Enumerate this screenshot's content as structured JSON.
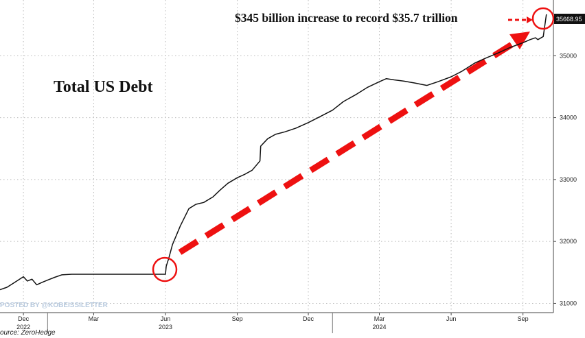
{
  "chart_data": {
    "type": "line",
    "title": "Total US Debt",
    "annotation": "$345 billion increase to record $35.7 trillion",
    "last_value_label": "35668.95",
    "watermark": "POSTED BY @KOBEISSILETTER",
    "source": "ource: ZeroHedge",
    "ylim": [
      30850,
      35900
    ],
    "y_ticks": [
      31000,
      32000,
      33000,
      34000,
      35000
    ],
    "y_tick_labels": [
      "31000",
      "32000",
      "33000",
      "34000",
      "35000"
    ],
    "x_range": [
      "2022-11-01",
      "2024-10-10"
    ],
    "x_ticks": [
      {
        "date": "2022-12-01",
        "label": "Dec",
        "year": "2022"
      },
      {
        "date": "2023-03-01",
        "label": "Mar"
      },
      {
        "date": "2023-06-01",
        "label": "Jun",
        "year": "2023"
      },
      {
        "date": "2023-09-01",
        "label": "Sep"
      },
      {
        "date": "2023-12-01",
        "label": "Dec"
      },
      {
        "date": "2024-03-01",
        "label": "Mar",
        "year": "2024"
      },
      {
        "date": "2024-06-01",
        "label": "Jun"
      },
      {
        "date": "2024-09-01",
        "label": "Sep"
      }
    ],
    "series": [
      {
        "x": [
          "2022-11-01",
          "2022-11-10",
          "2022-11-20",
          "2022-12-01",
          "2022-12-06",
          "2022-12-12",
          "2022-12-18",
          "2022-12-25",
          "2023-01-02",
          "2023-01-10",
          "2023-01-19",
          "2023-02-01",
          "2023-03-01",
          "2023-04-01",
          "2023-05-01",
          "2023-06-01",
          "2023-06-02",
          "2023-06-05",
          "2023-06-10",
          "2023-06-20",
          "2023-07-01",
          "2023-07-10",
          "2023-07-20",
          "2023-08-01",
          "2023-08-10",
          "2023-08-20",
          "2023-09-01",
          "2023-09-10",
          "2023-09-20",
          "2023-09-30",
          "2023-10-01",
          "2023-10-10",
          "2023-10-20",
          "2023-11-01",
          "2023-11-15",
          "2023-12-01",
          "2023-12-15",
          "2024-01-01",
          "2024-01-15",
          "2024-02-01",
          "2024-02-15",
          "2024-03-01",
          "2024-03-10",
          "2024-03-20",
          "2024-04-01",
          "2024-04-15",
          "2024-05-01",
          "2024-05-15",
          "2024-06-01",
          "2024-06-15",
          "2024-07-01",
          "2024-07-15",
          "2024-08-01",
          "2024-08-15",
          "2024-09-01",
          "2024-09-10",
          "2024-09-17",
          "2024-09-20",
          "2024-09-27",
          "2024-10-01"
        ],
        "values": [
          31220,
          31260,
          31340,
          31430,
          31360,
          31390,
          31300,
          31340,
          31380,
          31420,
          31460,
          31470,
          31470,
          31470,
          31470,
          31470,
          31600,
          31720,
          31950,
          32250,
          32530,
          32600,
          32630,
          32720,
          32830,
          32940,
          33030,
          33080,
          33150,
          33300,
          33540,
          33660,
          33730,
          33770,
          33830,
          33920,
          34010,
          34120,
          34260,
          34380,
          34490,
          34580,
          34630,
          34610,
          34590,
          34560,
          34520,
          34580,
          34660,
          34750,
          34880,
          34960,
          35050,
          35130,
          35210,
          35260,
          35290,
          35260,
          35310,
          35668.95
        ]
      }
    ]
  }
}
